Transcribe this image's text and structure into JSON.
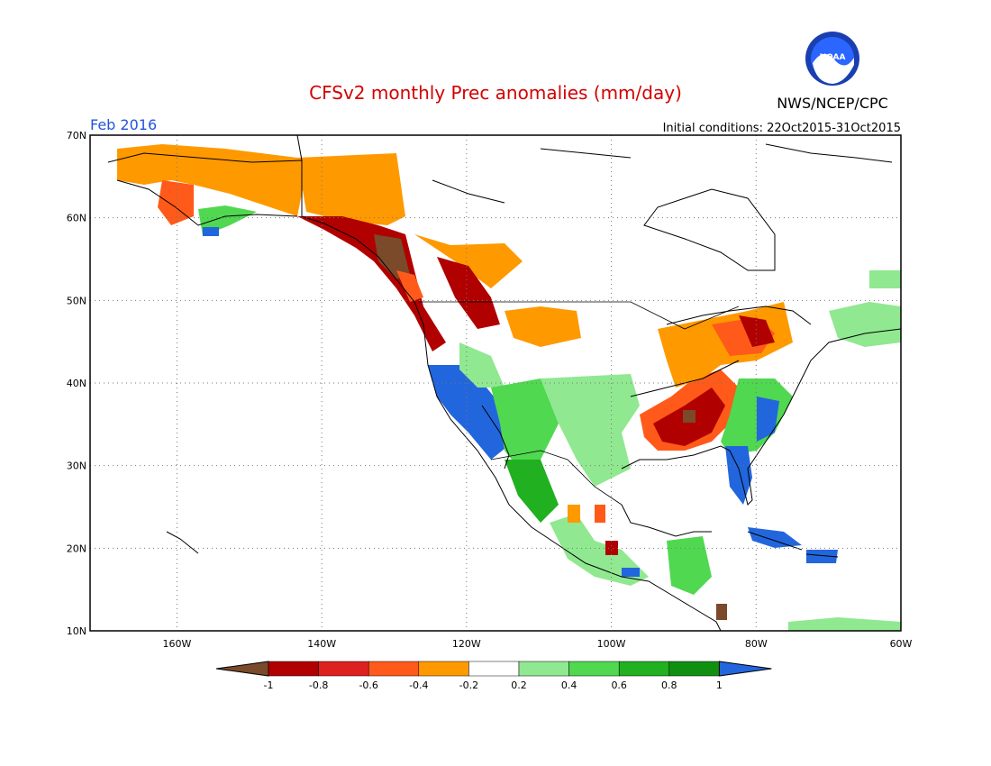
{
  "title": "CFSv2 monthly Prec anomalies (mm/day)",
  "month": "Feb 2016",
  "initial_conditions": "Initial conditions: 22Oct2015-31Oct2015",
  "agency": "NWS/NCEP/CPC",
  "logo_text": "NOAA",
  "colors": {
    "title": "#d40000",
    "month": "#2255dd",
    "scale": [
      "#7a4a2a",
      "#b00000",
      "#dd2020",
      "#ff5a1a",
      "#ff9900",
      "#ffffff",
      "#90e890",
      "#50d850",
      "#20b020",
      "#109010",
      "#2266dd"
    ]
  },
  "map": {
    "lon_range": [
      -172,
      -60
    ],
    "lat_range": [
      10,
      70
    ],
    "lon_ticks": [
      {
        "value": -160,
        "label": "160W"
      },
      {
        "value": -140,
        "label": "140W"
      },
      {
        "value": -120,
        "label": "120W"
      },
      {
        "value": -100,
        "label": "100W"
      },
      {
        "value": -80,
        "label": "80W"
      },
      {
        "value": -60,
        "label": "60W"
      }
    ],
    "lat_ticks": [
      {
        "value": 10,
        "label": "10N"
      },
      {
        "value": 20,
        "label": "20N"
      },
      {
        "value": 30,
        "label": "30N"
      },
      {
        "value": 40,
        "label": "40N"
      },
      {
        "value": 50,
        "label": "50N"
      },
      {
        "value": 60,
        "label": "60N"
      },
      {
        "value": 70,
        "label": "70N"
      }
    ],
    "grid": "dotted"
  },
  "colorbar": {
    "labels": [
      "-1",
      "-0.8",
      "-0.6",
      "-0.4",
      "-0.2",
      "0.2",
      "0.4",
      "0.6",
      "0.8",
      "1"
    ]
  }
}
